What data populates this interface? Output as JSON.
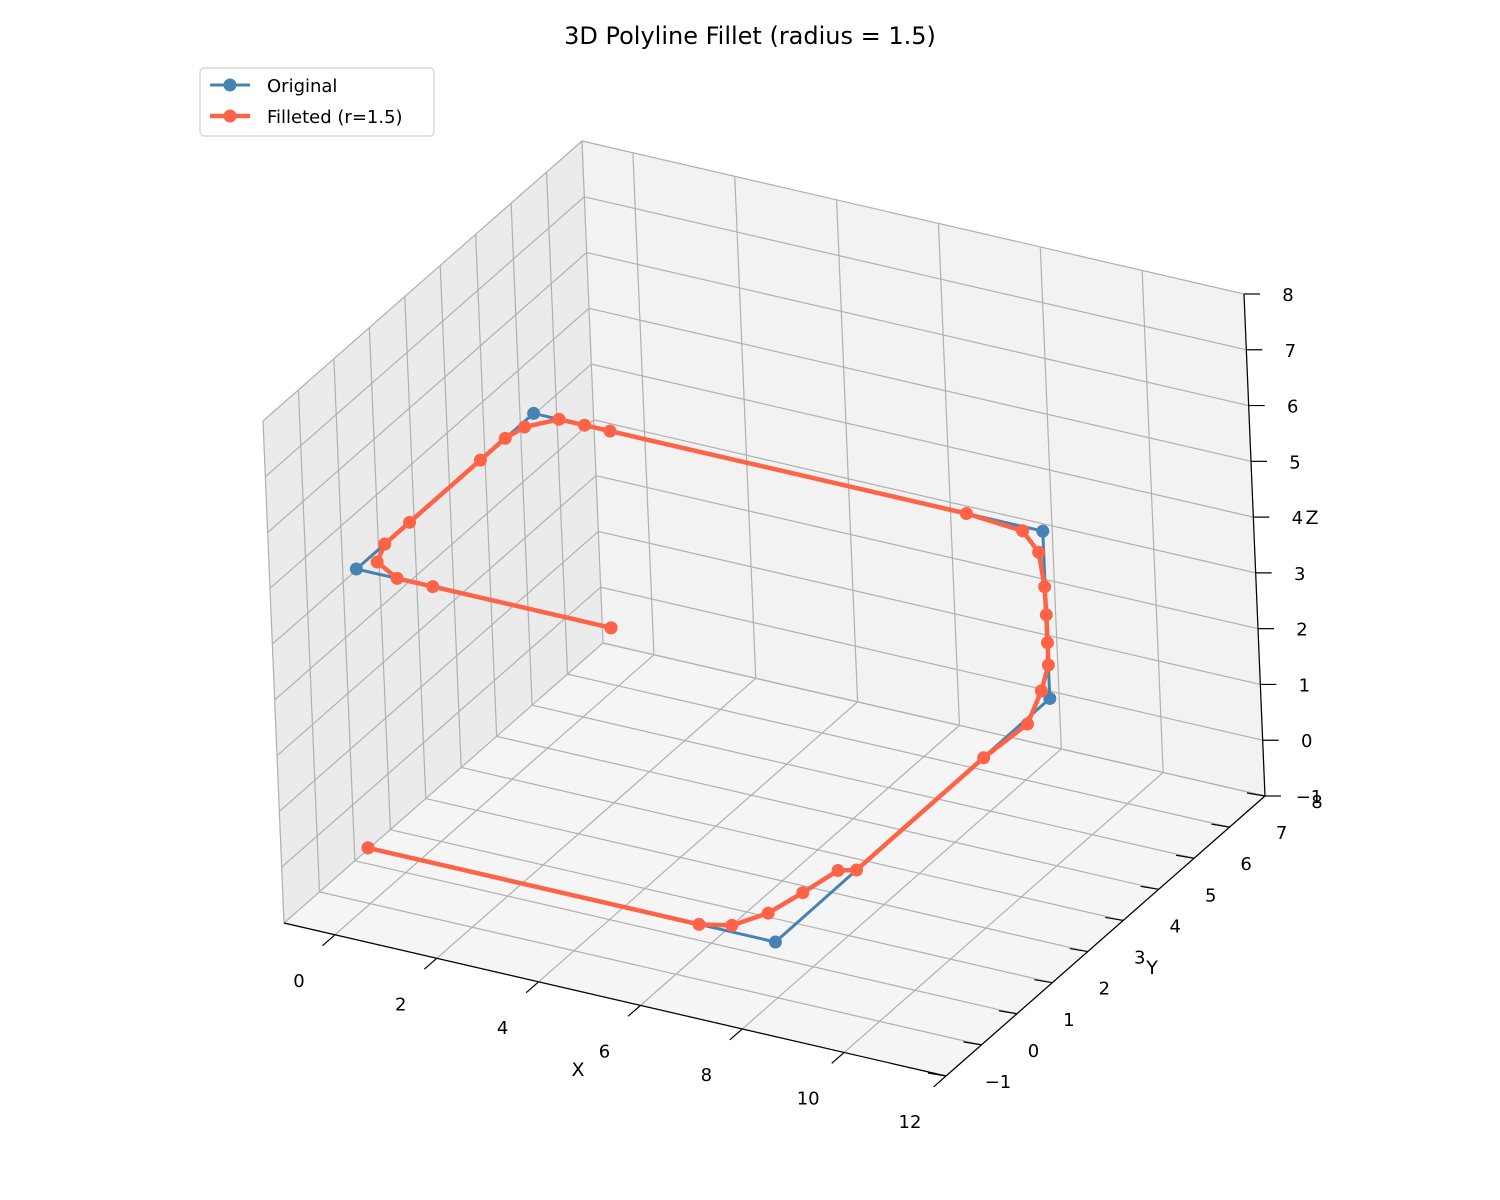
{
  "chart_data": {
    "type": "line",
    "projection": "3d",
    "title": "3D Polyline Fillet (radius = 1.5)",
    "xlabel": "X",
    "ylabel": "Y",
    "zlabel": "Z",
    "xlim": [
      -1,
      12
    ],
    "ylim": [
      -1,
      8
    ],
    "zlim": [
      -1,
      8
    ],
    "xticks": [
      "0",
      "2",
      "4",
      "6",
      "8",
      "10",
      "12"
    ],
    "yticks": [
      "−1",
      "0",
      "1",
      "2",
      "3",
      "4",
      "5",
      "6",
      "7",
      "8"
    ],
    "zticks": [
      "−1",
      "0",
      "1",
      "2",
      "3",
      "4",
      "5",
      "6",
      "7",
      "8"
    ],
    "grid": true,
    "legend_position": "top-left",
    "series": [
      {
        "name": "Original",
        "color": "#4682b4",
        "points": [
          [
            0,
            0,
            0
          ],
          [
            8,
            0,
            0
          ],
          [
            10,
            5,
            2
          ],
          [
            10,
            5,
            5
          ],
          [
            0,
            5,
            5
          ],
          [
            0,
            0,
            5
          ],
          [
            5,
            0,
            5
          ]
        ]
      },
      {
        "name": "Filleted (r=1.5)",
        "color": "#ff6347",
        "points": [
          [
            0,
            0,
            0
          ],
          [
            6.5,
            0,
            0
          ],
          [
            7.07,
            0.11,
            0.04
          ],
          [
            7.56,
            0.44,
            0.18
          ],
          [
            7.92,
            0.91,
            0.36
          ],
          [
            8.28,
            1.4,
            0.56
          ],
          [
            8.59,
            1.48,
            0.59
          ],
          [
            9.52,
            3.79,
            1.51
          ],
          [
            9.9,
            4.5,
            1.8
          ],
          [
            9.97,
            4.82,
            2.23
          ],
          [
            10,
            5,
            2.6
          ],
          [
            10,
            5,
            3
          ],
          [
            10,
            5,
            3.5
          ],
          [
            9.99,
            5,
            4.0
          ],
          [
            9.9,
            5,
            4.6
          ],
          [
            9.6,
            5,
            4.92
          ],
          [
            8.5,
            5,
            5
          ],
          [
            1.5,
            5,
            5
          ],
          [
            1.0,
            5,
            5
          ],
          [
            0.5,
            5,
            5
          ],
          [
            0.1,
            4.6,
            5
          ],
          [
            0,
            4.2,
            5
          ],
          [
            0,
            3.5,
            5
          ],
          [
            0,
            1.5,
            5
          ],
          [
            0,
            0.8,
            5
          ],
          [
            0.2,
            0.3,
            5
          ],
          [
            0.8,
            0,
            5
          ],
          [
            1.5,
            0,
            5
          ],
          [
            5,
            0,
            5
          ]
        ]
      }
    ]
  }
}
